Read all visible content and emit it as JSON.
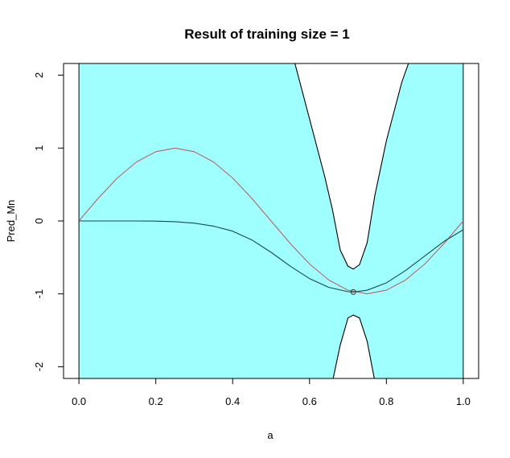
{
  "chart_data": {
    "type": "line",
    "title": "Result of training size = 1",
    "xlabel": "a",
    "ylabel": "Pred_Mn",
    "xlim": [
      -0.04,
      1.04
    ],
    "ylim": [
      -2.16,
      2.16
    ],
    "xticks": [
      0.0,
      0.2,
      0.4,
      0.6,
      0.8,
      1.0
    ],
    "xtick_labels": [
      "0.0",
      "0.2",
      "0.4",
      "0.6",
      "0.8",
      "1.0"
    ],
    "yticks": [
      -2,
      -1,
      0,
      1,
      2
    ],
    "ytick_labels": [
      "-2",
      "-1",
      "0",
      "1",
      "2"
    ],
    "grid": false,
    "colors": {
      "band_fill": "#9ffffe",
      "true_function": "#c06060",
      "prediction_mean": "#1a4a4a",
      "band_edge": "#000000"
    },
    "training_point": {
      "x": 0.714,
      "y": -0.974
    },
    "series": [
      {
        "role": "true_function",
        "x": [
          0,
          0.05,
          0.1,
          0.15,
          0.2,
          0.25,
          0.3,
          0.35,
          0.4,
          0.45,
          0.5,
          0.55,
          0.6,
          0.65,
          0.7,
          0.75,
          0.8,
          0.85,
          0.9,
          0.95,
          1.0
        ],
        "y": [
          0,
          0.31,
          0.59,
          0.81,
          0.95,
          1.0,
          0.95,
          0.81,
          0.59,
          0.31,
          0,
          -0.31,
          -0.59,
          -0.81,
          -0.95,
          -1.0,
          -0.95,
          -0.81,
          -0.59,
          -0.31,
          0
        ]
      },
      {
        "role": "prediction_mean",
        "x": [
          0,
          0.05,
          0.1,
          0.15,
          0.2,
          0.25,
          0.3,
          0.35,
          0.4,
          0.45,
          0.5,
          0.55,
          0.6,
          0.65,
          0.7,
          0.714,
          0.75,
          0.8,
          0.85,
          0.9,
          0.95,
          1.0
        ],
        "y": [
          0,
          0,
          0,
          0,
          -0.002,
          -0.01,
          -0.03,
          -0.07,
          -0.14,
          -0.26,
          -0.43,
          -0.62,
          -0.79,
          -0.91,
          -0.97,
          -0.974,
          -0.95,
          -0.85,
          -0.68,
          -0.48,
          -0.28,
          -0.12
        ]
      }
    ],
    "band": {
      "x": [
        0,
        0.2,
        0.4,
        0.5,
        0.56,
        0.6,
        0.64,
        0.66,
        0.68,
        0.7,
        0.714,
        0.73,
        0.75,
        0.77,
        0.8,
        0.84,
        0.86,
        0.9,
        1.0
      ],
      "upper": [
        3.5,
        3.5,
        3.5,
        3.5,
        2.2,
        1.4,
        0.6,
        0.15,
        -0.4,
        -0.62,
        -0.66,
        -0.6,
        -0.3,
        0.35,
        1.1,
        1.9,
        2.2,
        3.5,
        3.5
      ],
      "lower": [
        -3.5,
        -3.5,
        -3.5,
        -3.5,
        -3.5,
        -3.5,
        -3.5,
        -2.2,
        -1.7,
        -1.33,
        -1.29,
        -1.33,
        -1.65,
        -2.2,
        -3.5,
        -3.5,
        -3.5,
        -3.5,
        -3.5
      ]
    }
  }
}
